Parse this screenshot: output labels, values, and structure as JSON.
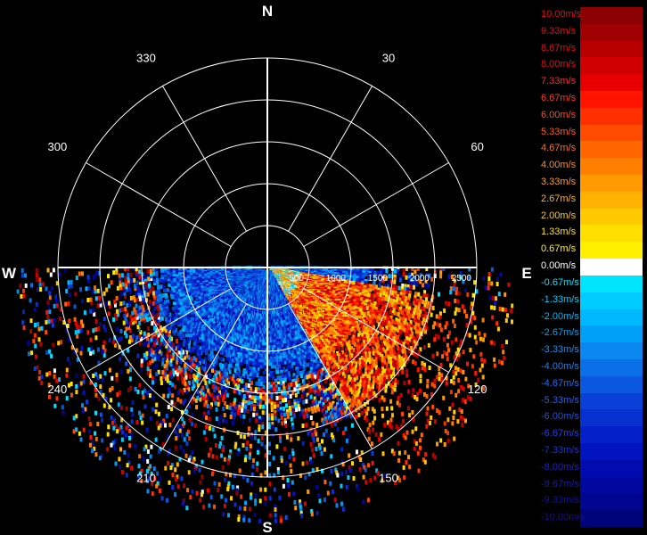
{
  "compass": {
    "north": "N",
    "south": "S",
    "east": "E",
    "west": "W"
  },
  "azimuth_labels": [
    {
      "deg": 30,
      "text": "30"
    },
    {
      "deg": 60,
      "text": "60"
    },
    {
      "deg": 120,
      "text": "120"
    },
    {
      "deg": 150,
      "text": "150"
    },
    {
      "deg": 210,
      "text": "210"
    },
    {
      "deg": 240,
      "text": "240"
    },
    {
      "deg": 300,
      "text": "300"
    },
    {
      "deg": 330,
      "text": "330"
    }
  ],
  "range_labels": [
    "500",
    "1000",
    "1500",
    "2000",
    "2500"
  ],
  "legend": [
    {
      "label": "10.00m/s",
      "color": "#8b0000",
      "text_color": "#e01010"
    },
    {
      "label": "9.33m/s",
      "color": "#a00000",
      "text_color": "#e01010"
    },
    {
      "label": "8.67m/s",
      "color": "#b80000",
      "text_color": "#e01010"
    },
    {
      "label": "8.00m/s",
      "color": "#d00000",
      "text_color": "#e01010"
    },
    {
      "label": "7.33m/s",
      "color": "#e80000",
      "text_color": "#ff2a2a"
    },
    {
      "label": "6.67m/s",
      "color": "#ff1400",
      "text_color": "#ff3a1a"
    },
    {
      "label": "6.00m/s",
      "color": "#ff3000",
      "text_color": "#ff4a1a"
    },
    {
      "label": "5.33m/s",
      "color": "#ff4c00",
      "text_color": "#ff5c1a"
    },
    {
      "label": "4.67m/s",
      "color": "#ff6600",
      "text_color": "#ff7020"
    },
    {
      "label": "4.00m/s",
      "color": "#ff8000",
      "text_color": "#ff8c20"
    },
    {
      "label": "3.33m/s",
      "color": "#ff9a00",
      "text_color": "#ffa020"
    },
    {
      "label": "2.67m/s",
      "color": "#ffb300",
      "text_color": "#ffb820"
    },
    {
      "label": "2.00m/s",
      "color": "#ffca00",
      "text_color": "#ffcc20"
    },
    {
      "label": "1.33m/s",
      "color": "#ffdf00",
      "text_color": "#ffe020"
    },
    {
      "label": "0.67m/s",
      "color": "#fff000",
      "text_color": "#fff030"
    },
    {
      "label": "0.00m/s",
      "color": "#ffffff",
      "text_color": "#ffffff"
    },
    {
      "label": "-0.67m/s",
      "color": "#00e5ff",
      "text_color": "#00e5ff"
    },
    {
      "label": "-1.33m/s",
      "color": "#00ccff",
      "text_color": "#00ccff"
    },
    {
      "label": "-2.00m/s",
      "color": "#00b8ff",
      "text_color": "#00b8ff"
    },
    {
      "label": "-2.67m/s",
      "color": "#00a0f8",
      "text_color": "#00a0f8"
    },
    {
      "label": "-3.33m/s",
      "color": "#0a88f0",
      "text_color": "#1890f0"
    },
    {
      "label": "-4.00m/s",
      "color": "#0a70e8",
      "text_color": "#2080f0"
    },
    {
      "label": "-4.67m/s",
      "color": "#0a58e0",
      "text_color": "#2070f0"
    },
    {
      "label": "-5.33m/s",
      "color": "#0840d8",
      "text_color": "#2060f0"
    },
    {
      "label": "-6.00m/s",
      "color": "#0630d0",
      "text_color": "#2050e8"
    },
    {
      "label": "-6.67m/s",
      "color": "#0420c8",
      "text_color": "#2040e0"
    },
    {
      "label": "-7.33m/s",
      "color": "#0214c0",
      "text_color": "#2030d8"
    },
    {
      "label": "-8.00m/s",
      "color": "#000cb0",
      "text_color": "#2020c8"
    },
    {
      "label": "-8.67m/s",
      "color": "#0008a0",
      "text_color": "#1818b8"
    },
    {
      "label": "-9.33m/s",
      "color": "#000690",
      "text_color": "#1010a8"
    },
    {
      "label": "-10.00m/s",
      "color": "#00047a",
      "text_color": "#101098"
    }
  ]
}
